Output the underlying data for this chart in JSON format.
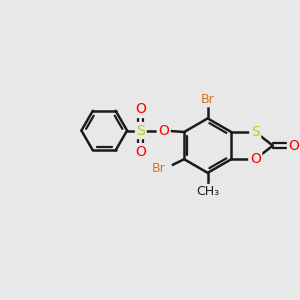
{
  "background_color": "#e8e8e8",
  "bond_color": "#1a1a1a",
  "atom_colors": {
    "Br": "#cc7722",
    "S": "#cccc00",
    "O": "#ff0000",
    "C": "#1a1a1a",
    "H": "#1a1a1a"
  },
  "bond_width": 1.8,
  "figsize": [
    3.0,
    3.0
  ],
  "dpi": 100
}
